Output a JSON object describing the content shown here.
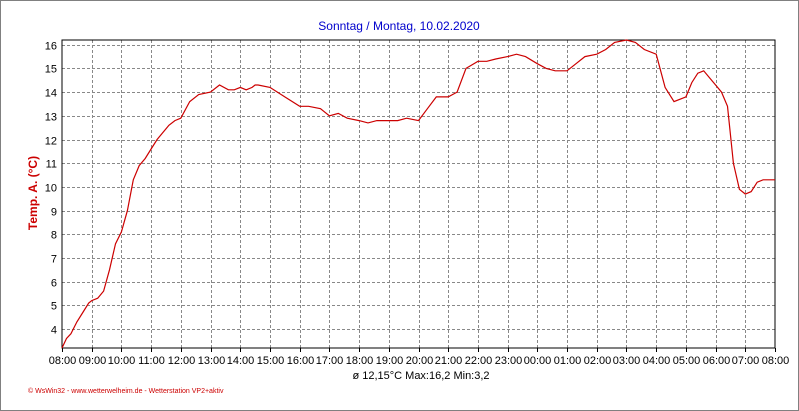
{
  "chart_data": {
    "type": "line",
    "title": "Sonntag / Montag, 10.02.2020",
    "ylabel": "Temp. A. (°C)",
    "xlabel": "",
    "x_unit": "hours from 08:00",
    "xlim": [
      0,
      24
    ],
    "ylim": [
      3.2,
      16.2
    ],
    "y_ticks": [
      4,
      5,
      6,
      7,
      8,
      9,
      10,
      11,
      12,
      13,
      14,
      15,
      16
    ],
    "x_tick_labels": [
      "08:00",
      "09:00",
      "10:00",
      "11:00",
      "12:00",
      "13:00",
      "14:00",
      "15:00",
      "16:00",
      "17:00",
      "18:00",
      "19:00",
      "20:00",
      "21:00",
      "22:00",
      "23:00",
      "00:00",
      "01:00",
      "02:00",
      "03:00",
      "04:00",
      "05:00",
      "06:00",
      "07:00",
      "08:00"
    ],
    "grid": true,
    "series": [
      {
        "color": "#cc0000",
        "x": [
          0,
          0.15,
          0.3,
          0.5,
          0.7,
          0.9,
          1.0,
          1.2,
          1.4,
          1.6,
          1.8,
          2.0,
          2.2,
          2.4,
          2.6,
          2.8,
          3.0,
          3.2,
          3.4,
          3.6,
          3.8,
          4.0,
          4.3,
          4.6,
          5.0,
          5.3,
          5.6,
          5.8,
          6.0,
          6.2,
          6.4,
          6.5,
          6.6,
          7.0,
          7.5,
          8.0,
          8.3,
          8.7,
          9.0,
          9.3,
          9.6,
          10.0,
          10.3,
          10.6,
          11.0,
          11.3,
          11.6,
          12.0,
          12.3,
          12.6,
          13.0,
          13.3,
          13.6,
          14.0,
          14.3,
          14.6,
          15.0,
          15.3,
          15.6,
          16.0,
          16.3,
          16.6,
          17.0,
          17.3,
          17.6,
          18.0,
          18.3,
          18.6,
          19.0,
          19.3,
          19.6,
          20.0,
          20.3,
          20.6,
          21.0,
          21.2,
          21.4,
          21.6,
          21.8,
          22.0,
          22.2,
          22.4,
          22.6,
          22.8,
          23.0,
          23.2,
          23.4,
          23.6,
          23.8,
          24.0
        ],
        "values": [
          3.2,
          3.6,
          3.8,
          4.3,
          4.7,
          5.1,
          5.2,
          5.3,
          5.6,
          6.5,
          7.6,
          8.1,
          9.0,
          10.3,
          10.9,
          11.2,
          11.6,
          12.0,
          12.3,
          12.6,
          12.8,
          12.9,
          13.6,
          13.9,
          14.0,
          14.3,
          14.1,
          14.1,
          14.2,
          14.1,
          14.2,
          14.3,
          14.3,
          14.2,
          13.8,
          13.4,
          13.4,
          13.3,
          13.0,
          13.1,
          12.9,
          12.8,
          12.7,
          12.8,
          12.8,
          12.8,
          12.9,
          12.8,
          13.3,
          13.8,
          13.8,
          14.0,
          15.0,
          15.3,
          15.3,
          15.4,
          15.5,
          15.6,
          15.5,
          15.2,
          15.0,
          14.9,
          14.9,
          15.2,
          15.5,
          15.6,
          15.8,
          16.1,
          16.2,
          16.1,
          15.8,
          15.6,
          14.2,
          13.6,
          13.8,
          14.4,
          14.8,
          14.9,
          14.6,
          14.3,
          14.0,
          13.4,
          11.0,
          9.9,
          9.7,
          9.8,
          10.2,
          10.3,
          10.3,
          10.3
        ]
      }
    ],
    "stats_text": "ø 12,15°C  Max:16,2  Min:3,2",
    "footer_text": "© WsWin32  -  www.wetterwelheim.de  -  Wetterstation VP2+aktiv"
  }
}
